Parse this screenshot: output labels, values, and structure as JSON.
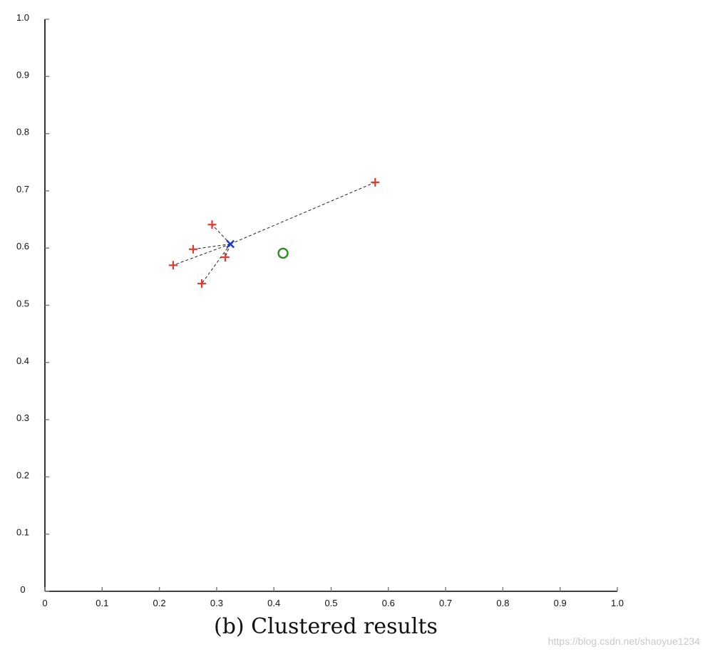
{
  "chart_data": {
    "type": "scatter",
    "title": "",
    "xlabel": "",
    "ylabel": "",
    "xlim": [
      0,
      1.0
    ],
    "ylim": [
      0,
      1.0
    ],
    "grid": false,
    "x_ticks": [
      "0",
      "0.1",
      "0.2",
      "0.3",
      "0.4",
      "0.5",
      "0.6",
      "0.7",
      "0.8",
      "0.9",
      "1.0"
    ],
    "y_ticks": [
      "0",
      "0.1",
      "0.2",
      "0.3",
      "0.4",
      "0.5",
      "0.6",
      "0.7",
      "0.8",
      "0.9",
      "1.0"
    ],
    "series": [
      {
        "marker": "plus",
        "color": "#e23a2e",
        "points": [
          {
            "x": 0.577,
            "y": 0.715
          },
          {
            "x": 0.292,
            "y": 0.641
          },
          {
            "x": 0.259,
            "y": 0.598
          },
          {
            "x": 0.315,
            "y": 0.584
          },
          {
            "x": 0.224,
            "y": 0.57
          },
          {
            "x": 0.274,
            "y": 0.538
          }
        ]
      },
      {
        "marker": "x",
        "color": "#1a35c9",
        "points": [
          {
            "x": 0.324,
            "y": 0.607
          }
        ]
      },
      {
        "marker": "circle",
        "color": "#2f8a22",
        "points": [
          {
            "x": 0.416,
            "y": 0.591
          }
        ]
      }
    ],
    "connections": {
      "from_series": 1,
      "to_series": 0,
      "style": "dashed",
      "color": "#222222"
    }
  },
  "caption": "(b) Clustered results",
  "watermark": "https://blog.csdn.net/shaoyue1234"
}
